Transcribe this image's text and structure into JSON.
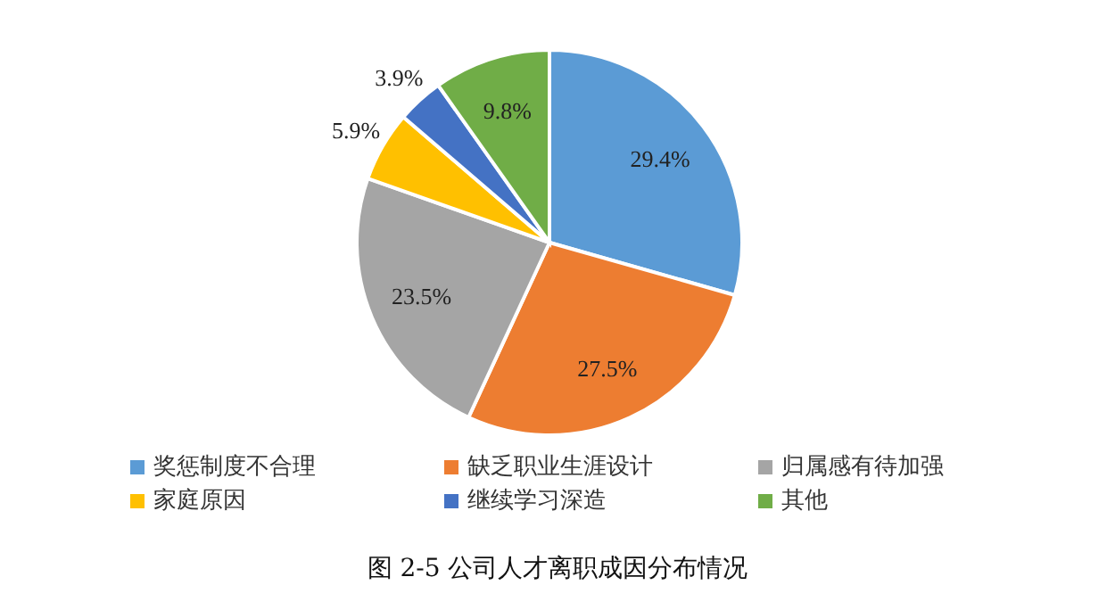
{
  "chart_data": {
    "type": "pie",
    "title": "图 2-5    公司人才离职成因分布情况",
    "categories": [
      "奖惩制度不合理",
      "缺乏职业生涯设计",
      "归属感有待加强",
      "家庭原因",
      "继续学习深造",
      "其他"
    ],
    "values": [
      29.4,
      27.5,
      23.5,
      5.9,
      3.9,
      9.8
    ],
    "colors": [
      "#5b9bd5",
      "#ed7d31",
      "#a5a5a5",
      "#ffc000",
      "#4472c4",
      "#70ad47"
    ],
    "value_labels": [
      "29.4%",
      "27.5%",
      "23.5%",
      "5.9%",
      "3.9%",
      "9.8%"
    ],
    "legend": "bottom"
  }
}
